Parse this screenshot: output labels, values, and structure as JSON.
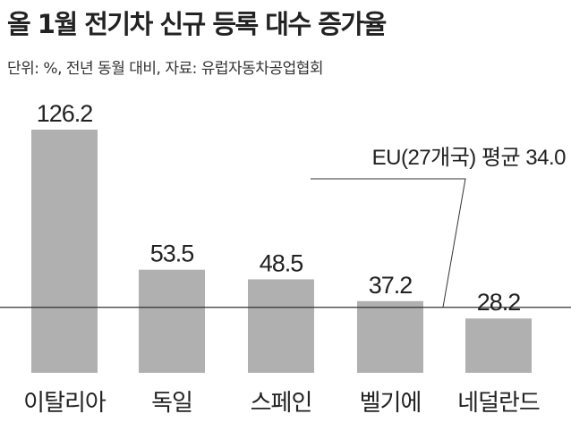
{
  "title": "올 1월 전기차 신규 등록 대수 증가율",
  "subtitle": "단위: %, 전년 동월 대비, 자료: 유럽자동차공업협회",
  "chart_data": {
    "type": "bar",
    "title": "올 1월 전기차 신규 등록 대수 증가율",
    "subtitle": "단위: %, 전년 동월 대비, 자료: 유럽자동차공업협회",
    "categories": [
      "이탈리아",
      "독일",
      "스페인",
      "벨기에",
      "네덜란드"
    ],
    "values": [
      126.2,
      53.5,
      48.5,
      37.2,
      28.2
    ],
    "value_labels": [
      "126.2",
      "53.5",
      "48.5",
      "37.2",
      "28.2"
    ],
    "reference_line": {
      "value": 34.0,
      "label": "EU(27개국) 평균 34.0"
    },
    "ylim": [
      0,
      126.2
    ],
    "bar_color": "#b0b0b0",
    "line_color": "#333333",
    "grid": false
  }
}
